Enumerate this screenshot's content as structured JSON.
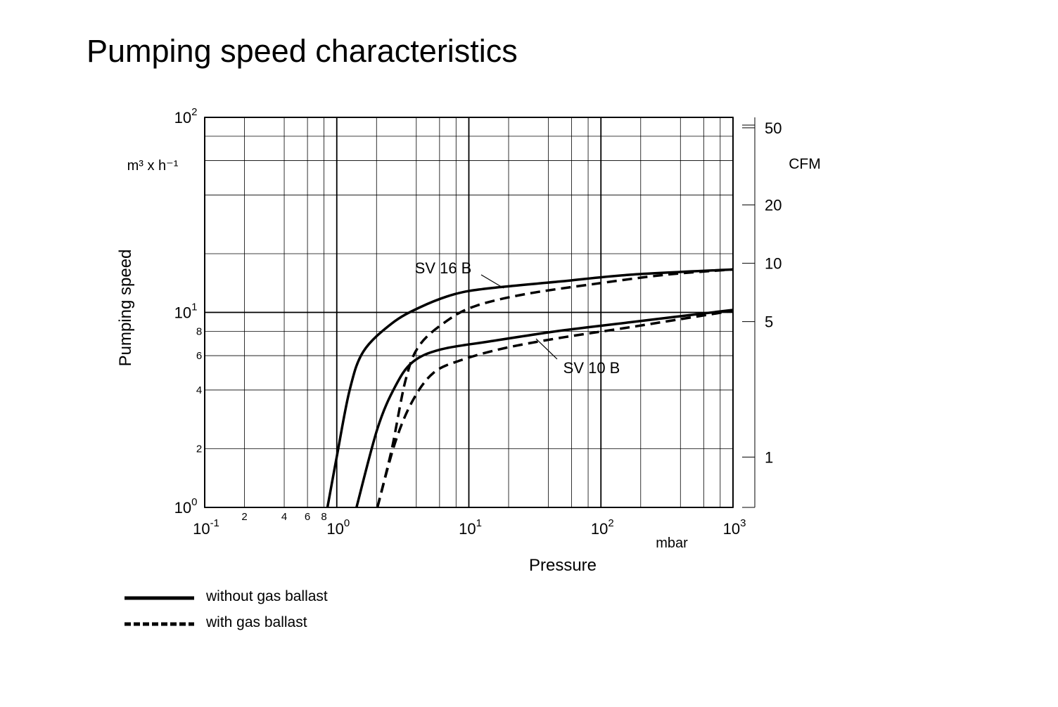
{
  "chart_data": {
    "type": "line",
    "title": "Pumping speed characteristics",
    "x_label": "Pressure",
    "x_unit": "mbar",
    "y_label": "Pumping speed",
    "y_unit": "m³ x h⁻¹",
    "y2_unit": "CFM",
    "x_log": true,
    "y_log": true,
    "y2_log": true,
    "grid": true,
    "xlim": [
      0.1,
      1000
    ],
    "ylim": [
      1,
      100
    ],
    "y2lim": [
      0.55,
      56.6
    ],
    "xticks": [
      {
        "value": 0.1,
        "label": "10",
        "superscript": "-1"
      },
      {
        "value": 1,
        "label": "10",
        "superscript": "0"
      },
      {
        "value": 10,
        "label": "10",
        "superscript": "1"
      },
      {
        "value": 100,
        "label": "10",
        "superscript": "2"
      },
      {
        "value": 1000,
        "label": "10",
        "superscript": "3"
      }
    ],
    "x_minor_ticks": [
      {
        "value": 0.2,
        "label": "2"
      },
      {
        "value": 0.4,
        "label": "4"
      },
      {
        "value": 0.6,
        "label": "6"
      },
      {
        "value": 0.8,
        "label": "8"
      }
    ],
    "x_grid": [
      2,
      4,
      6,
      8,
      20,
      40,
      60,
      80,
      200,
      400,
      600,
      800
    ],
    "yticks": [
      {
        "value": 1,
        "label": "10",
        "superscript": "0"
      },
      {
        "value": 10,
        "label": "10",
        "superscript": "1"
      },
      {
        "value": 100,
        "label": "10",
        "superscript": "2"
      }
    ],
    "y_minor_ticks": [
      2,
      4,
      6,
      8
    ],
    "y_grid": [
      20,
      40,
      60,
      80
    ],
    "y2ticks": [
      1,
      5,
      10,
      20,
      50
    ],
    "series": [
      {
        "color": "#000000",
        "dashed": false,
        "x": [
          0.85,
          1.0,
          1.25,
          1.59,
          2.6,
          4.24,
          7.8,
          14.4,
          49,
          167,
          1000
        ],
        "values": [
          1,
          1.82,
          3.98,
          6.3,
          8.76,
          10.6,
          12.4,
          13.3,
          14.4,
          15.6,
          16.6
        ]
      },
      {
        "color": "#000000",
        "dashed": true,
        "x": [
          2.03,
          2.6,
          3.32,
          4.24,
          6.9,
          11.3,
          26.6,
          90,
          310,
          1000
        ],
        "values": [
          1,
          1.97,
          4.5,
          6.8,
          9.1,
          10.8,
          12.4,
          14.0,
          15.6,
          16.6
        ]
      },
      {
        "color": "#000000",
        "dashed": false,
        "x": [
          1.41,
          2.03,
          2.76,
          3.75,
          6.1,
          14.4,
          49,
          167,
          1000
        ],
        "values": [
          1,
          2.53,
          4.15,
          5.56,
          6.45,
          7.1,
          8.05,
          8.9,
          10.3
        ]
      },
      {
        "color": "#000000",
        "dashed": true,
        "x": [
          2.03,
          2.76,
          3.75,
          5.4,
          8.8,
          18.5,
          49,
          167,
          1000
        ],
        "values": [
          1,
          2.14,
          3.52,
          4.9,
          5.7,
          6.55,
          7.4,
          8.4,
          10.2
        ]
      }
    ],
    "annotations": [
      "SV 16 B",
      "SV 10 B"
    ],
    "legend": [
      {
        "label": "without gas ballast",
        "dashed": false
      },
      {
        "label": "with gas ballast",
        "dashed": true
      }
    ]
  }
}
